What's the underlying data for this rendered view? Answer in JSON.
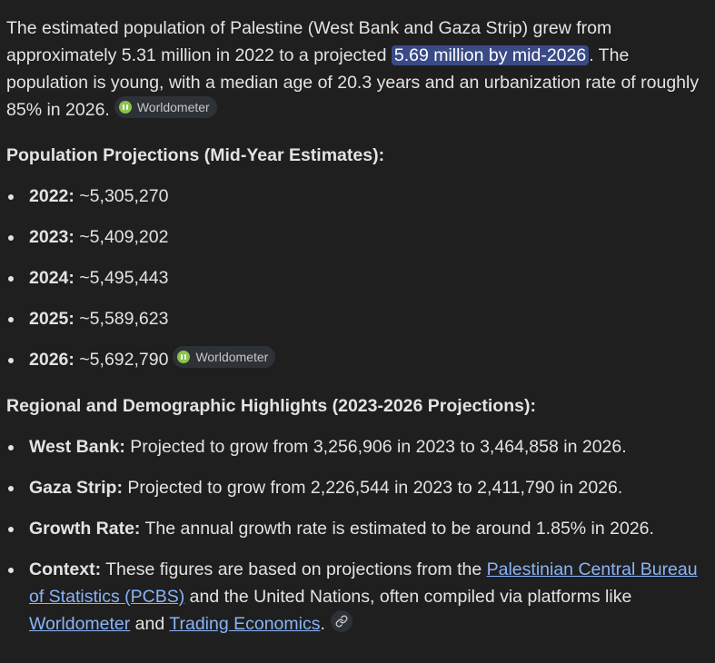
{
  "intro": {
    "text1": "The estimated population of Palestine (West Bank and Gaza Strip) grew from approximately 5.31 million in 2022 to a projected ",
    "highlight": "5.69 million by mid-2026",
    "text2": ". The population is young, with a median age of 20.3 years and an urbanization rate of roughly 85% in 2026.",
    "source_chip": "Worldometer"
  },
  "projections": {
    "heading": "Population Projections (Mid-Year Estimates):",
    "items": [
      {
        "year": "2022:",
        "value": " ~5,305,270"
      },
      {
        "year": "2023:",
        "value": " ~5,409,202"
      },
      {
        "year": "2024:",
        "value": " ~5,495,443"
      },
      {
        "year": "2025:",
        "value": " ~5,589,623"
      },
      {
        "year": "2026:",
        "value": " ~5,692,790"
      }
    ],
    "source_chip": "Worldometer"
  },
  "highlights": {
    "heading": "Regional and Demographic Highlights (2023-2026 Projections):",
    "west_bank": {
      "label": "West Bank:",
      "text": " Projected to grow from 3,256,906 in 2023 to 3,464,858 in 2026."
    },
    "gaza": {
      "label": "Gaza Strip:",
      "text": " Projected to grow from 2,226,544 in 2023 to 2,411,790 in 2026."
    },
    "growth": {
      "label": "Growth Rate:",
      "text": " The annual growth rate is estimated to be around 1.85% in 2026."
    },
    "context": {
      "label": "Context:",
      "text1": " These figures are based on projections from the ",
      "link1": "Palestinian Central Bureau of Statistics (PCBS)",
      "text2": " and the United Nations, often compiled via platforms like ",
      "link2": "Worldometer",
      "text3": " and ",
      "link3": "Trading Economics",
      "text4": "."
    }
  },
  "icons": {
    "chip_icon": "worldometer-logo-icon",
    "link_icon": "link-icon"
  },
  "colors": {
    "background": "#1f1f1f",
    "text": "#e3e3e3",
    "highlight_bg": "#3a4a86",
    "link": "#8ab4f8",
    "chip_bg": "#2e3138",
    "chip_logo": "#8bc34a"
  }
}
